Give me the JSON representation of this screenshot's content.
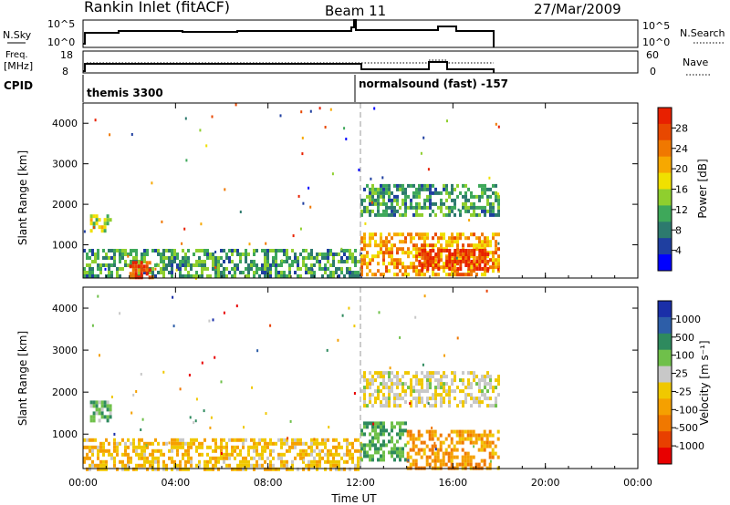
{
  "header": {
    "station": "Rankin Inlet (fitACF)",
    "beam": "Beam 11",
    "date": "27/Mar/2009"
  },
  "noise_panel": {
    "left_label": "N.Sky",
    "left_ticks": [
      "10^5",
      "10^0"
    ],
    "right_ticks": [
      "10^5",
      "10^0"
    ],
    "right_label": "N.Search"
  },
  "freq_panel": {
    "left_label_1": "Freq.",
    "left_label_2": "[MHz]",
    "left_ticks": [
      "18",
      "8"
    ],
    "right_ticks": [
      "60",
      "0"
    ],
    "right_label": "Nave"
  },
  "cpid": {
    "label": "CPID",
    "segments": [
      "themis 3300",
      "normalsound (fast) -157"
    ]
  },
  "colors": {
    "power_scale": [
      "#0000ff",
      "#1f3fa0",
      "#2d7a6e",
      "#3ea85a",
      "#8fcf2e",
      "#f0e000",
      "#f7a800",
      "#f07800",
      "#e84800",
      "#e82000"
    ],
    "velocity_scale": [
      "#1a2fa8",
      "#2d5ea8",
      "#2e8a5e",
      "#6fc04a",
      "#c8c8c8",
      "#f0c800",
      "#f5a000",
      "#f07800",
      "#e84000",
      "#e80000"
    ]
  },
  "chart_data": [
    {
      "type": "heatmap",
      "title": "",
      "xlabel": "Time UT",
      "ylabel": "Slant Range [km]",
      "xlim": [
        "00:00",
        "24:00"
      ],
      "ylim": [
        180,
        4500
      ],
      "x_ticks": [
        "00:00",
        "04:00",
        "08:00",
        "12:00",
        "16:00",
        "20:00",
        "00:00"
      ],
      "y_ticks": [
        1000,
        2000,
        3000,
        4000
      ],
      "colorbar": {
        "label": "Power [dB]",
        "ticks": [
          "4",
          "8",
          "12",
          "16",
          "20",
          "24",
          "28"
        ],
        "range": [
          0,
          30
        ]
      },
      "regions": [
        {
          "t0": 0.3,
          "t1": 1.2,
          "r0": 1350,
          "r1": 1750,
          "value": 14
        },
        {
          "t0": 0.0,
          "t1": 12.0,
          "r0": 180,
          "r1": 900,
          "value": 10
        },
        {
          "t0": 2.0,
          "t1": 3.0,
          "r0": 200,
          "r1": 600,
          "value": 26
        },
        {
          "t0": 12.0,
          "t1": 18.0,
          "r0": 250,
          "r1": 1300,
          "value": 20
        },
        {
          "t0": 14.5,
          "t1": 17.5,
          "r0": 400,
          "r1": 900,
          "value": 28
        },
        {
          "t0": 12.0,
          "t1": 18.0,
          "r0": 1700,
          "r1": 2500,
          "value": 10
        }
      ]
    },
    {
      "type": "heatmap",
      "title": "",
      "xlabel": "Time UT",
      "ylabel": "Slant Range [km]",
      "xlim": [
        "00:00",
        "24:00"
      ],
      "ylim": [
        180,
        4500
      ],
      "x_ticks": [
        "00:00",
        "04:00",
        "08:00",
        "12:00",
        "16:00",
        "20:00",
        "00:00"
      ],
      "y_ticks": [
        1000,
        2000,
        3000,
        4000
      ],
      "colorbar": {
        "label": "Velocity [m s⁻¹]",
        "ticks": [
          "1000",
          "500",
          "100",
          "25",
          "-25",
          "-100",
          "-500",
          "-1000"
        ],
        "range": [
          -1000,
          1000
        ]
      },
      "regions": [
        {
          "t0": 0.3,
          "t1": 1.2,
          "r0": 1350,
          "r1": 1800,
          "value": 300
        },
        {
          "t0": 0.0,
          "t1": 12.0,
          "r0": 180,
          "r1": 900,
          "value": -150
        },
        {
          "t0": 12.0,
          "t1": 14.0,
          "r0": 400,
          "r1": 1300,
          "value": 400
        },
        {
          "t0": 14.0,
          "t1": 18.0,
          "r0": 200,
          "r1": 1100,
          "value": -350
        },
        {
          "t0": 12.0,
          "t1": 18.0,
          "r0": 1700,
          "r1": 2500,
          "value": 50
        }
      ]
    }
  ]
}
